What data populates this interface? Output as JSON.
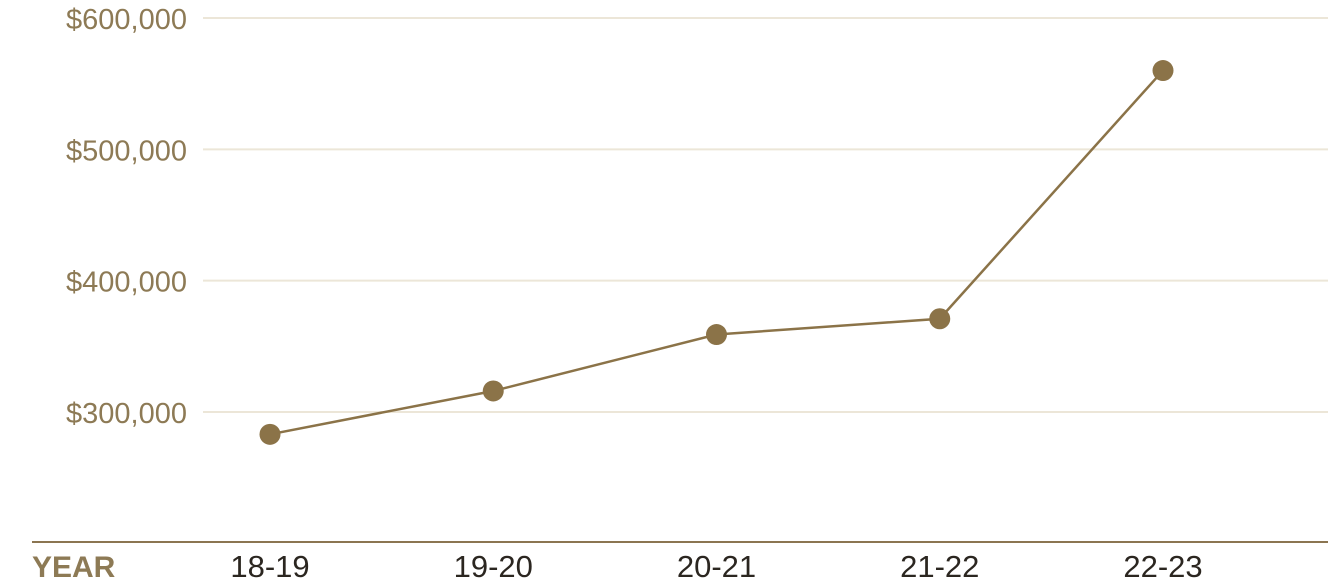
{
  "chart_data": {
    "type": "line",
    "title": "",
    "xlabel": "YEAR",
    "ylabel": "",
    "categories": [
      "18-19",
      "19-20",
      "20-21",
      "21-22",
      "22-23"
    ],
    "series": [
      {
        "values": [
          283000,
          316000,
          359000,
          371000,
          560000
        ]
      }
    ],
    "yticks": [
      300000,
      400000,
      500000,
      600000
    ],
    "ytick_labels": [
      "$300,000",
      "$400,000",
      "$500,000",
      "$600,000"
    ],
    "ylim": [
      200000,
      610000
    ],
    "grid": true,
    "legend": "none"
  },
  "colors": {
    "line": "#8b7348",
    "marker": "#8b7348",
    "grid": "#ece6d8",
    "ytick_text": "#8d7a55",
    "xtick_text": "#2b2620",
    "xlabel_text": "#8d7a55",
    "baseline": "#8b7551"
  }
}
